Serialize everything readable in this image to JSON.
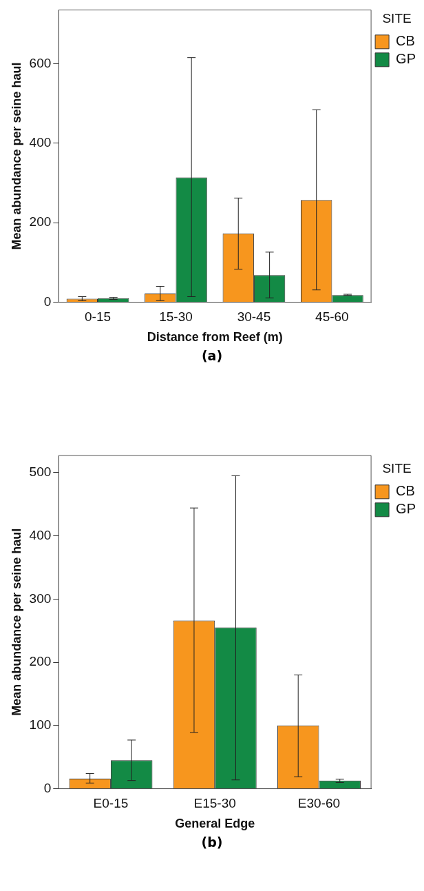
{
  "chart_data": [
    {
      "type": "bar",
      "xlabel": "Distance from Reef (m)",
      "ylabel": "Mean abundance per seine haul",
      "legend_title": "SITE",
      "legend": "top right",
      "grid": false,
      "annotations": [
        "(a)"
      ],
      "categories": [
        "0-15",
        "15-30",
        "30-45",
        "45-60"
      ],
      "ylim": [
        0,
        735
      ],
      "yticks": [
        0,
        200,
        400,
        600
      ],
      "series": [
        {
          "name": "CB",
          "color": "#f7961e",
          "values": [
            9,
            22,
            173,
            257
          ],
          "errors": [
            [
              4,
              14
            ],
            [
              4,
              40
            ],
            [
              83,
              262
            ],
            [
              31,
              484
            ]
          ]
        },
        {
          "name": "GP",
          "color": "#138a45",
          "values": [
            10,
            314,
            68,
            18
          ],
          "errors": [
            [
              7,
              12
            ],
            [
              14,
              615
            ],
            [
              11,
              126
            ],
            [
              17,
              20
            ]
          ]
        }
      ]
    },
    {
      "type": "bar",
      "xlabel": "General Edge",
      "ylabel": "Mean abundance per seine haul",
      "legend_title": "SITE",
      "legend": "top right",
      "grid": false,
      "annotations": [
        "(b)"
      ],
      "categories": [
        "E0-15",
        "E15-30",
        "E30-60"
      ],
      "ylim": [
        0,
        527
      ],
      "yticks": [
        0,
        100,
        200,
        300,
        400,
        500
      ],
      "series": [
        {
          "name": "CB",
          "color": "#f7961e",
          "values": [
            16,
            266,
            100
          ],
          "errors": [
            [
              9,
              24
            ],
            [
              89,
              444
            ],
            [
              19,
              180
            ]
          ]
        },
        {
          "name": "GP",
          "color": "#138a45",
          "values": [
            45,
            255,
            13
          ],
          "errors": [
            [
              13,
              77
            ],
            [
              14,
              495
            ],
            [
              10,
              15
            ]
          ]
        }
      ]
    }
  ]
}
